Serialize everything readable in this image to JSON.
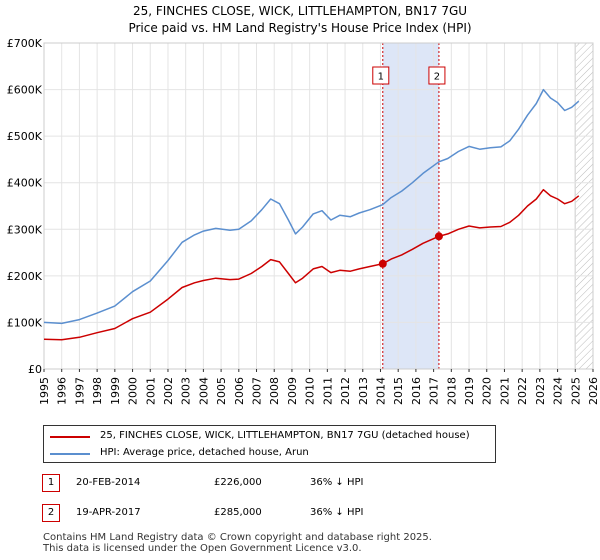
{
  "chart_data": {
    "type": "line",
    "title": "25, FINCHES CLOSE, WICK, LITTLEHAMPTON, BN17 7GU",
    "subtitle": "Price paid vs. HM Land Registry's House Price Index (HPI)",
    "xlim": [
      1995,
      2026
    ],
    "ylim": [
      0,
      700000
    ],
    "x_ticks": [
      "1995",
      "1996",
      "1997",
      "1998",
      "1999",
      "2000",
      "2001",
      "2002",
      "2003",
      "2004",
      "2005",
      "2006",
      "2007",
      "2008",
      "2009",
      "2010",
      "2011",
      "2012",
      "2013",
      "2014",
      "2015",
      "2016",
      "2017",
      "2018",
      "2019",
      "2020",
      "2021",
      "2022",
      "2023",
      "2024",
      "2025",
      "2026"
    ],
    "y_ticks": [
      {
        "value": 0,
        "label": "£0"
      },
      {
        "value": 100000,
        "label": "£100K"
      },
      {
        "value": 200000,
        "label": "£200K"
      },
      {
        "value": 300000,
        "label": "£300K"
      },
      {
        "value": 400000,
        "label": "£400K"
      },
      {
        "value": 500000,
        "label": "£500K"
      },
      {
        "value": 600000,
        "label": "£600K"
      },
      {
        "value": 700000,
        "label": "£700K"
      }
    ],
    "shaded_period": [
      2014.13,
      2017.3
    ],
    "forecast_start": 2025.0,
    "series": [
      {
        "name": "25, FINCHES CLOSE, WICK, LITTLEHAMPTON, BN17 7GU (detached house)",
        "color": "#cc0000",
        "x": [
          1995,
          1996,
          1997,
          1998,
          1999,
          2000,
          2001,
          2002,
          2002.8,
          2003.5,
          2004,
          2004.7,
          2005.5,
          2006,
          2006.7,
          2007.3,
          2007.8,
          2008.3,
          2008.8,
          2009.2,
          2009.6,
          2010.2,
          2010.7,
          2011.2,
          2011.7,
          2012.3,
          2012.8,
          2013.4,
          2014.13,
          2014.6,
          2015.2,
          2015.8,
          2016.4,
          2017.3,
          2017.8,
          2018.4,
          2019,
          2019.6,
          2020.2,
          2020.8,
          2021.3,
          2021.8,
          2022.3,
          2022.8,
          2023.2,
          2023.6,
          2024,
          2024.4,
          2024.8,
          2025.2
        ],
        "y": [
          64000,
          63000,
          68000,
          78000,
          87000,
          108000,
          122000,
          150000,
          175000,
          185000,
          190000,
          195000,
          192000,
          193000,
          205000,
          220000,
          235000,
          230000,
          205000,
          185000,
          195000,
          215000,
          220000,
          207000,
          212000,
          210000,
          215000,
          220000,
          226000,
          236000,
          245000,
          257000,
          270000,
          285000,
          290000,
          300000,
          307000,
          303000,
          305000,
          306000,
          315000,
          330000,
          350000,
          365000,
          385000,
          372000,
          365000,
          355000,
          360000,
          372000
        ]
      },
      {
        "name": "HPI: Average price, detached house, Arun",
        "color": "#5b8fcf",
        "x": [
          1995,
          1996,
          1997,
          1998,
          1999,
          2000,
          2001,
          2002,
          2002.8,
          2003.5,
          2004,
          2004.7,
          2005.5,
          2006,
          2006.7,
          2007.3,
          2007.8,
          2008.3,
          2008.8,
          2009.2,
          2009.6,
          2010.2,
          2010.7,
          2011.2,
          2011.7,
          2012.3,
          2012.8,
          2013.4,
          2014.13,
          2014.6,
          2015.2,
          2015.8,
          2016.4,
          2017.3,
          2017.8,
          2018.4,
          2019,
          2019.6,
          2020.2,
          2020.8,
          2021.3,
          2021.8,
          2022.3,
          2022.8,
          2023.2,
          2023.6,
          2024,
          2024.4,
          2024.8,
          2025.2
        ],
        "y": [
          100000,
          98000,
          106000,
          120000,
          135000,
          166000,
          189000,
          233000,
          272000,
          288000,
          296000,
          302000,
          298000,
          300000,
          318000,
          342000,
          365000,
          355000,
          320000,
          290000,
          305000,
          333000,
          340000,
          320000,
          330000,
          327000,
          335000,
          342000,
          353000,
          368000,
          382000,
          400000,
          420000,
          445000,
          452000,
          467000,
          478000,
          472000,
          475000,
          477000,
          490000,
          515000,
          545000,
          570000,
          600000,
          582000,
          572000,
          555000,
          562000,
          575000
        ]
      }
    ],
    "annotations": [
      {
        "label": "1",
        "x": 2014.13,
        "y": 226000
      },
      {
        "label": "2",
        "x": 2017.3,
        "y": 285000
      }
    ]
  },
  "legend": {
    "property_label": "25, FINCHES CLOSE, WICK, LITTLEHAMPTON, BN17 7GU (detached house)",
    "hpi_label": "HPI: Average price, detached house, Arun",
    "property_color": "#cc0000",
    "hpi_color": "#5b8fcf"
  },
  "transactions": [
    {
      "num": "1",
      "date": "20-FEB-2014",
      "price": "£226,000",
      "hpi": "36% ↓ HPI"
    },
    {
      "num": "2",
      "date": "19-APR-2017",
      "price": "£285,000",
      "hpi": "36% ↓ HPI"
    }
  ],
  "footer": {
    "line1": "Contains HM Land Registry data © Crown copyright and database right 2025.",
    "line2": "This data is licensed under the Open Government Licence v3.0."
  }
}
